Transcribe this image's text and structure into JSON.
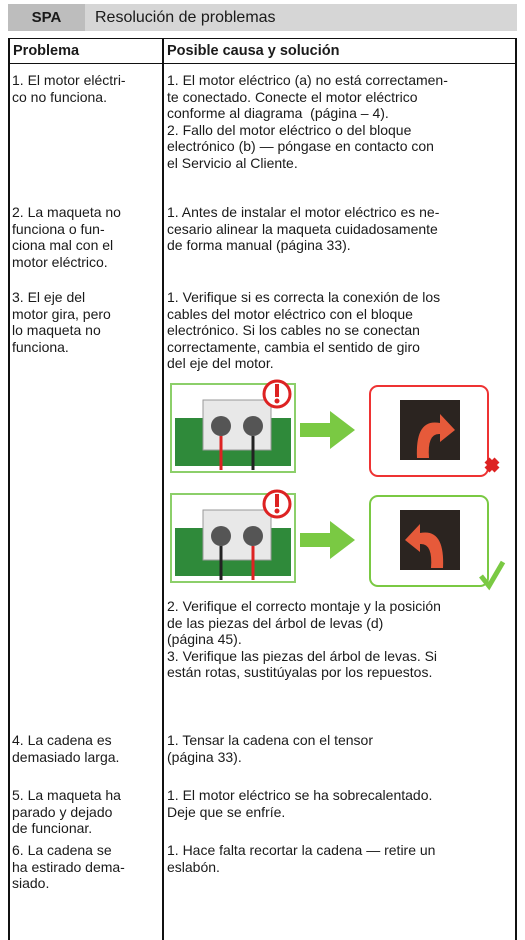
{
  "header": {
    "code": "SPA",
    "title": "Resolución de problemas"
  },
  "table": {
    "columns": [
      "Problema",
      "Posible causa y solución"
    ],
    "rows": [
      {
        "problem": [
          "1. El motor eléctri-",
          "co no funciona."
        ],
        "solution": [
          "1. El motor eléctrico (a) no está correctamen-",
          "te conectado. Conecte el motor eléctrico",
          "conforme al diagrama  (página – 4).",
          "2. Fallo del motor eléctrico o del bloque",
          "electrónico (b) — póngase en contacto con",
          "el Servicio al Cliente."
        ]
      },
      {
        "problem": [
          "2. La maqueta no",
          "funciona o fun-",
          "ciona mal con el",
          "motor eléctrico."
        ],
        "solution": [
          "1. Antes de instalar el motor eléctrico es ne-",
          "cesario alinear la maqueta cuidadosamente",
          "de forma manual (página 33)."
        ]
      },
      {
        "problem": [
          "3. El eje del",
          "motor gira, pero",
          "lo maqueta no",
          "funciona."
        ],
        "solution": [
          "1. Verifique si es correcta la conexión de los",
          "cables del motor eléctrico con el bloque",
          "electrónico. Si los cables no se conectan",
          "correctamente, cambia el sentido de giro",
          "del eje del motor."
        ],
        "solution_after_image": [
          "2. Verifique el correcto montaje y la posición",
          "de las piezas del árbol de levas (d)",
          "(página 45).",
          "3. Verifique las piezas del árbol de levas. Si",
          "están rotas, sustitúyalas por los repuestos."
        ]
      },
      {
        "problem": [
          "4. La cadena es",
          "demasiado larga."
        ],
        "solution": [
          "1. Tensar la cadena con el tensor",
          "(página 33)."
        ]
      },
      {
        "problem": [
          "5. La maqueta ha",
          "parado y dejado",
          "de funcionar."
        ],
        "solution": [
          "1. El motor eléctrico se ha sobrecalentado.",
          "Deje que se enfríe."
        ]
      },
      {
        "problem": [
          "6. La cadena se",
          "ha estirado dema-",
          "siado."
        ],
        "solution": [
          "1. Hace falta recortar la cadena — retire un",
          "eslabón."
        ]
      }
    ]
  }
}
